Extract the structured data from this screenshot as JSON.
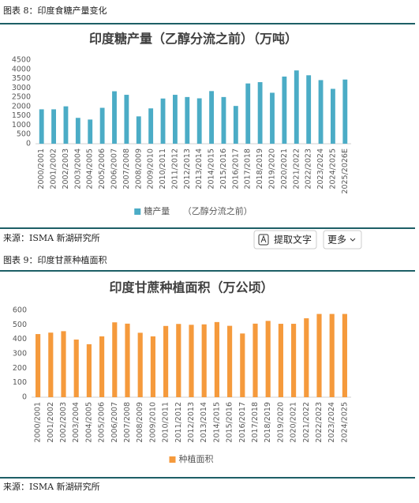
{
  "figure_8": {
    "caption": "图表 8：印度食糖产量变化",
    "source": "来源：ISMA 新湖研究所"
  },
  "toolbar": {
    "extract": "提取文字",
    "more": "更多"
  },
  "figure_9": {
    "caption": "图表 9：印度甘蔗种植面积",
    "source": "来源：ISMA 新湖研究所"
  },
  "chart_data": [
    {
      "type": "bar",
      "title": "印度糖产量（乙醇分流之前）（万吨）",
      "categories": [
        "2000/2001",
        "2001/2002",
        "2002/2003",
        "2003/2004",
        "2004/2005",
        "2005/2006",
        "2006/2007",
        "2007/2008",
        "2008/2009",
        "2009/2010",
        "2010/2011",
        "2011/2012",
        "2012/2013",
        "2013/2014",
        "2014/2015",
        "2015/2016",
        "2016/2017",
        "2017/2018",
        "2018/2019",
        "2019/2020",
        "2020/2021",
        "2021/2022",
        "2022/2023",
        "2023/2024",
        "2024/2025",
        "2025/2026E"
      ],
      "series": [
        {
          "name": "糖产量　　（乙醇分流之前）",
          "color": "#4bacc6",
          "values": [
            1850,
            1850,
            2010,
            1390,
            1300,
            1930,
            2820,
            2630,
            1470,
            1900,
            2430,
            2630,
            2510,
            2440,
            2830,
            2510,
            2030,
            3240,
            3310,
            2740,
            3610,
            3940,
            3680,
            3420,
            2950,
            3450
          ]
        }
      ],
      "ylim": [
        0,
        4500
      ],
      "yticks": [
        0,
        500,
        1000,
        1500,
        2000,
        2500,
        3000,
        3500,
        4000,
        4500
      ],
      "grid": false,
      "legend": "bottom"
    },
    {
      "type": "bar",
      "title": "印度甘蔗种植面积（万公顷）",
      "categories": [
        "2000/2001",
        "2001/2002",
        "2002/2003",
        "2003/2004",
        "2004/2005",
        "2005/2006",
        "2006/2007",
        "2007/2008",
        "2008/2009",
        "2009/2010",
        "2010/2011",
        "2011/2012",
        "2012/2013",
        "2013/2014",
        "2014/2015",
        "2015/2016",
        "2016/2017",
        "2017/2018",
        "2018/2019",
        "2019/2020",
        "2020/2021",
        "2021/2022",
        "2022/2023",
        "2023/2024",
        "2024/2025"
      ],
      "series": [
        {
          "name": "种植面积",
          "color": "#f59a3c",
          "values": [
            436,
            446,
            456,
            398,
            366,
            420,
            517,
            508,
            445,
            420,
            492,
            506,
            500,
            503,
            519,
            493,
            440,
            508,
            527,
            507,
            507,
            545,
            575,
            575,
            575
          ]
        }
      ],
      "ylim": [
        0,
        600
      ],
      "yticks": [
        0,
        100,
        200,
        300,
        400,
        500,
        600
      ],
      "grid": false,
      "legend": "bottom"
    }
  ]
}
